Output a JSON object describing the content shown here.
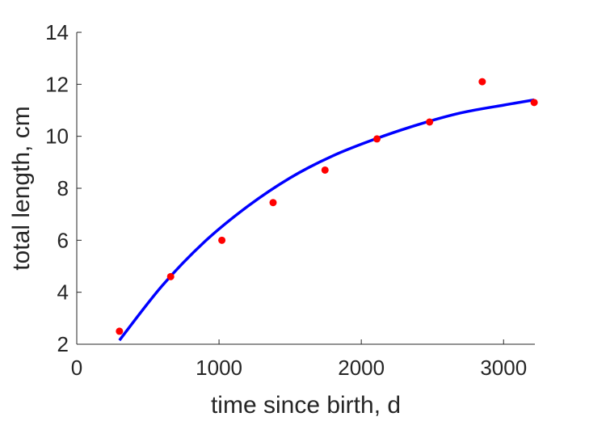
{
  "chart_data": {
    "type": "scatter",
    "xlabel": "time since birth, d",
    "ylabel": "total length, cm",
    "xlim": [
      0,
      3220
    ],
    "ylim": [
      2,
      14
    ],
    "xticks": [
      0,
      1000,
      2000,
      3000
    ],
    "yticks": [
      2,
      4,
      6,
      8,
      10,
      12,
      14
    ],
    "grid": false,
    "colors": {
      "points": "#ff0000",
      "fit": "#0000ff",
      "axes": "#262626"
    },
    "series": [
      {
        "type": "scatter",
        "x": [
          300,
          660,
          1020,
          1380,
          1745,
          2110,
          2480,
          2850,
          3215
        ],
        "y": [
          2.5,
          4.6,
          6.0,
          7.45,
          8.7,
          9.9,
          10.55,
          12.1,
          11.3
        ]
      },
      {
        "type": "line",
        "x": [
          300,
          600,
          900,
          1200,
          1500,
          1800,
          2100,
          2400,
          2700,
          3000,
          3215
        ],
        "y": [
          2.15,
          4.25,
          5.95,
          7.3,
          8.4,
          9.25,
          9.9,
          10.45,
          10.9,
          11.2,
          11.4
        ]
      }
    ]
  }
}
